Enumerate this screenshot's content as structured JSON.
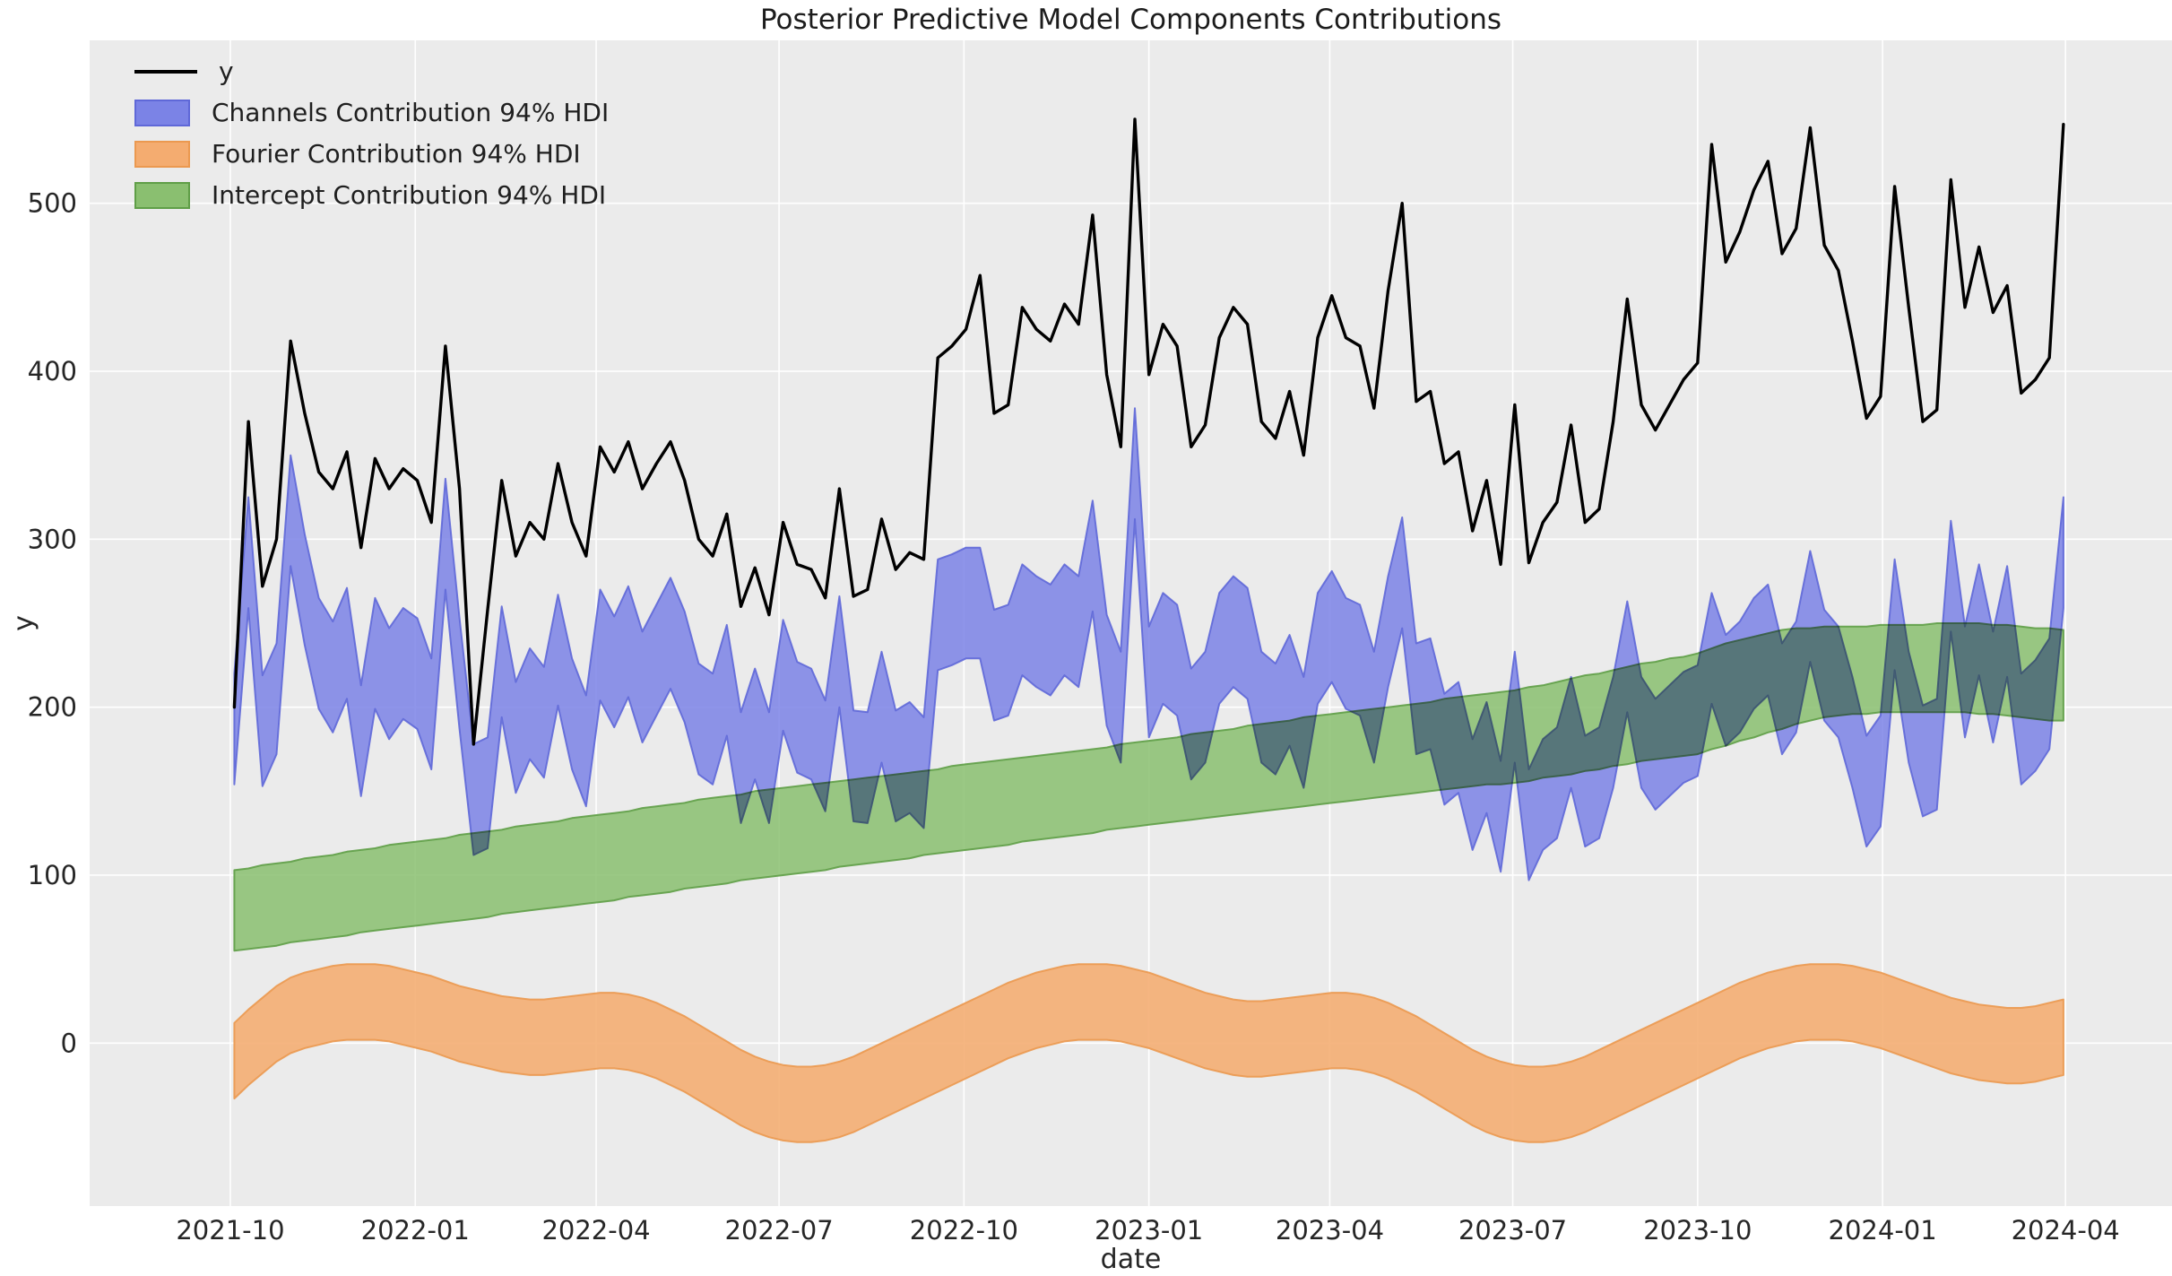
{
  "chart_data": {
    "type": "line",
    "title": "Posterior Predictive Model Components Contributions",
    "xlabel": "date",
    "ylabel": "y",
    "plot_bg": "#ebebeb",
    "grid_color": "#ffffff",
    "text_color": "#262626",
    "xlim": [
      "2021-07-23",
      "2024-05-24"
    ],
    "ylim": [
      -97,
      597
    ],
    "yticks": [
      0,
      100,
      200,
      300,
      400,
      500
    ],
    "xticks": [
      {
        "label": "2021-10",
        "date": "2021-10-01"
      },
      {
        "label": "2022-01",
        "date": "2022-01-01"
      },
      {
        "label": "2022-04",
        "date": "2022-04-01"
      },
      {
        "label": "2022-07",
        "date": "2022-07-01"
      },
      {
        "label": "2022-10",
        "date": "2022-10-01"
      },
      {
        "label": "2023-01",
        "date": "2023-01-01"
      },
      {
        "label": "2023-04",
        "date": "2023-04-01"
      },
      {
        "label": "2023-07",
        "date": "2023-07-01"
      },
      {
        "label": "2023-10",
        "date": "2023-10-01"
      },
      {
        "label": "2024-01",
        "date": "2024-01-01"
      },
      {
        "label": "2024-04",
        "date": "2024-04-01"
      }
    ],
    "x": {
      "start_date": "2021-10-03",
      "interval_days": 7,
      "n": 131
    },
    "legend_position": "upper left",
    "series": [
      {
        "name": "y",
        "kind": "line",
        "color": "#000000",
        "values": [
          200,
          370,
          272,
          300,
          418,
          375,
          340,
          330,
          352,
          295,
          348,
          330,
          342,
          335,
          310,
          415,
          330,
          178,
          258,
          335,
          290,
          310,
          300,
          345,
          310,
          290,
          355,
          340,
          358,
          330,
          345,
          358,
          335,
          300,
          290,
          315,
          260,
          283,
          255,
          310,
          285,
          282,
          265,
          330,
          266,
          270,
          312,
          282,
          292,
          288,
          408,
          415,
          425,
          457,
          375,
          380,
          438,
          425,
          418,
          440,
          428,
          493,
          398,
          355,
          550,
          398,
          428,
          415,
          355,
          368,
          420,
          438,
          428,
          370,
          360,
          388,
          350,
          420,
          445,
          420,
          415,
          378,
          448,
          500,
          382,
          388,
          345,
          352,
          305,
          335,
          285,
          380,
          286,
          310,
          322,
          368,
          310,
          318,
          370,
          443,
          380,
          365,
          380,
          395,
          405,
          535,
          465,
          483,
          508,
          525,
          470,
          485,
          545,
          475,
          460,
          418,
          372,
          385,
          510,
          438,
          370,
          377,
          514,
          438,
          474,
          435,
          451,
          387,
          395,
          408,
          547
        ]
      },
      {
        "name": "Channels Contribution 94% HDI",
        "kind": "band",
        "color": "#7b83e6",
        "edge_color": "#5f68d8",
        "lower": [
          154,
          259,
          153,
          172,
          284,
          237,
          199,
          185,
          205,
          147,
          199,
          181,
          193,
          187,
          163,
          270,
          187,
          112,
          116,
          194,
          149,
          169,
          158,
          201,
          163,
          141,
          204,
          188,
          206,
          179,
          195,
          211,
          191,
          160,
          154,
          183,
          131,
          157,
          131,
          186,
          161,
          157,
          138,
          200,
          132,
          131,
          167,
          132,
          137,
          128,
          222,
          225,
          229,
          229,
          192,
          195,
          219,
          212,
          207,
          219,
          212,
          257,
          189,
          167,
          312,
          182,
          202,
          195,
          157,
          167,
          202,
          212,
          205,
          167,
          160,
          177,
          152,
          202,
          215,
          199,
          195,
          167,
          212,
          247,
          172,
          175,
          142,
          149,
          115,
          137,
          102,
          167,
          97,
          115,
          122,
          152,
          117,
          122,
          152,
          197,
          152,
          139,
          147,
          155,
          159,
          202,
          177,
          185,
          199,
          207,
          172,
          185,
          227,
          192,
          182,
          152,
          117,
          129,
          222,
          167,
          135,
          139,
          245,
          182,
          219,
          179,
          218,
          154,
          162,
          175,
          259
        ],
        "upper": [
          220,
          325,
          219,
          238,
          350,
          303,
          265,
          251,
          271,
          213,
          265,
          247,
          259,
          253,
          229,
          336,
          253,
          178,
          182,
          260,
          215,
          235,
          224,
          267,
          229,
          207,
          270,
          254,
          272,
          245,
          261,
          277,
          257,
          226,
          220,
          249,
          197,
          223,
          197,
          252,
          227,
          223,
          204,
          266,
          198,
          197,
          233,
          198,
          203,
          194,
          288,
          291,
          295,
          295,
          258,
          261,
          285,
          278,
          273,
          285,
          278,
          323,
          255,
          233,
          378,
          248,
          268,
          261,
          223,
          233,
          268,
          278,
          271,
          233,
          226,
          243,
          218,
          268,
          281,
          265,
          261,
          233,
          278,
          313,
          238,
          241,
          208,
          215,
          181,
          203,
          168,
          233,
          163,
          181,
          188,
          218,
          183,
          188,
          218,
          263,
          218,
          205,
          213,
          221,
          225,
          268,
          243,
          251,
          265,
          273,
          238,
          251,
          293,
          258,
          248,
          218,
          183,
          195,
          288,
          233,
          201,
          205,
          311,
          248,
          285,
          245,
          284,
          220,
          228,
          241,
          325
        ]
      },
      {
        "name": "Fourier Contribution 94% HDI",
        "kind": "band",
        "color": "#f4ac70",
        "edge_color": "#eb9950",
        "lower": [
          -33,
          -25,
          -18,
          -11,
          -6,
          -3,
          -1,
          1,
          2,
          2,
          2,
          1,
          -1,
          -3,
          -5,
          -8,
          -11,
          -13,
          -15,
          -17,
          -18,
          -19,
          -19,
          -18,
          -17,
          -16,
          -15,
          -15,
          -16,
          -18,
          -21,
          -25,
          -29,
          -34,
          -39,
          -44,
          -49,
          -53,
          -56,
          -58,
          -59,
          -59,
          -58,
          -56,
          -53,
          -49,
          -45,
          -41,
          -37,
          -33,
          -29,
          -25,
          -21,
          -17,
          -13,
          -9,
          -6,
          -3,
          -1,
          1,
          2,
          2,
          2,
          1,
          -1,
          -3,
          -6,
          -9,
          -12,
          -15,
          -17,
          -19,
          -20,
          -20,
          -19,
          -18,
          -17,
          -16,
          -15,
          -15,
          -16,
          -18,
          -21,
          -25,
          -29,
          -34,
          -39,
          -44,
          -49,
          -53,
          -56,
          -58,
          -59,
          -59,
          -58,
          -56,
          -53,
          -49,
          -45,
          -41,
          -37,
          -33,
          -29,
          -25,
          -21,
          -17,
          -13,
          -9,
          -6,
          -3,
          -1,
          1,
          2,
          2,
          2,
          1,
          -1,
          -3,
          -6,
          -9,
          -12,
          -15,
          -18,
          -20,
          -22,
          -23,
          -24,
          -24,
          -23,
          -21,
          -19
        ],
        "upper": [
          12,
          20,
          27,
          34,
          39,
          42,
          44,
          46,
          47,
          47,
          47,
          46,
          44,
          42,
          40,
          37,
          34,
          32,
          30,
          28,
          27,
          26,
          26,
          27,
          28,
          29,
          30,
          30,
          29,
          27,
          24,
          20,
          16,
          11,
          6,
          1,
          -4,
          -8,
          -11,
          -13,
          -14,
          -14,
          -13,
          -11,
          -8,
          -4,
          0,
          4,
          8,
          12,
          16,
          20,
          24,
          28,
          32,
          36,
          39,
          42,
          44,
          46,
          47,
          47,
          47,
          46,
          44,
          42,
          39,
          36,
          33,
          30,
          28,
          26,
          25,
          25,
          26,
          27,
          28,
          29,
          30,
          30,
          29,
          27,
          24,
          20,
          16,
          11,
          6,
          1,
          -4,
          -8,
          -11,
          -13,
          -14,
          -14,
          -13,
          -11,
          -8,
          -4,
          0,
          4,
          8,
          12,
          16,
          20,
          24,
          28,
          32,
          36,
          39,
          42,
          44,
          46,
          47,
          47,
          47,
          46,
          44,
          42,
          39,
          36,
          33,
          30,
          27,
          25,
          23,
          22,
          21,
          21,
          22,
          24,
          26
        ]
      },
      {
        "name": "Intercept Contribution 94% HDI",
        "kind": "band",
        "color": "#8abf70",
        "edge_color": "#5f9e47",
        "lower": [
          55,
          56,
          57,
          58,
          60,
          61,
          62,
          63,
          64,
          66,
          67,
          68,
          69,
          70,
          71,
          72,
          73,
          74,
          75,
          77,
          78,
          79,
          80,
          81,
          82,
          83,
          84,
          85,
          87,
          88,
          89,
          90,
          92,
          93,
          94,
          95,
          97,
          98,
          99,
          100,
          101,
          102,
          103,
          105,
          106,
          107,
          108,
          109,
          110,
          112,
          113,
          114,
          115,
          116,
          117,
          118,
          120,
          121,
          122,
          123,
          124,
          125,
          127,
          128,
          129,
          130,
          131,
          132,
          133,
          134,
          135,
          136,
          137,
          138,
          139,
          140,
          141,
          142,
          143,
          144,
          145,
          146,
          147,
          148,
          149,
          150,
          151,
          152,
          153,
          154,
          154,
          155,
          156,
          158,
          159,
          160,
          162,
          163,
          165,
          166,
          168,
          169,
          170,
          171,
          172,
          175,
          177,
          180,
          182,
          185,
          187,
          190,
          192,
          194,
          195,
          196,
          196,
          197,
          197,
          197,
          197,
          197,
          197,
          197,
          196,
          196,
          195,
          194,
          193,
          192,
          192
        ],
        "upper": [
          103,
          104,
          106,
          107,
          108,
          110,
          111,
          112,
          114,
          115,
          116,
          118,
          119,
          120,
          121,
          122,
          124,
          125,
          126,
          127,
          129,
          130,
          131,
          132,
          134,
          135,
          136,
          137,
          138,
          140,
          141,
          142,
          143,
          145,
          146,
          147,
          148,
          150,
          151,
          152,
          153,
          154,
          155,
          156,
          157,
          158,
          159,
          160,
          161,
          162,
          163,
          165,
          166,
          167,
          168,
          169,
          170,
          171,
          172,
          173,
          174,
          175,
          176,
          178,
          179,
          180,
          181,
          182,
          184,
          185,
          186,
          187,
          189,
          190,
          191,
          192,
          194,
          195,
          196,
          197,
          198,
          199,
          200,
          201,
          202,
          203,
          205,
          206,
          207,
          208,
          209,
          210,
          212,
          213,
          215,
          217,
          219,
          220,
          222,
          224,
          226,
          227,
          229,
          230,
          232,
          235,
          238,
          240,
          242,
          244,
          246,
          247,
          247,
          248,
          248,
          248,
          248,
          249,
          249,
          249,
          249,
          250,
          250,
          250,
          250,
          249,
          249,
          248,
          247,
          247,
          246
        ]
      }
    ]
  }
}
